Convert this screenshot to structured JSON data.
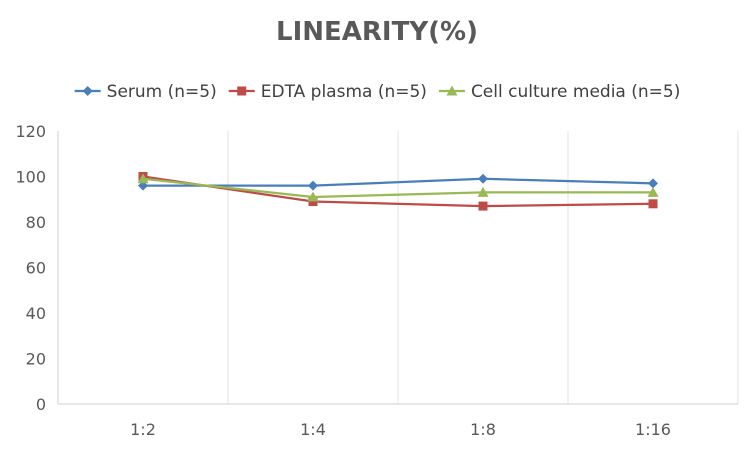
{
  "chart_data": {
    "type": "line",
    "title": "LINEARITY(%)",
    "xlabel": "",
    "ylabel": "",
    "categories": [
      "1:2",
      "1:4",
      "1:8",
      "1:16"
    ],
    "ylim": [
      0,
      120
    ],
    "yticks": [
      0,
      20,
      40,
      60,
      80,
      100,
      120
    ],
    "grid": "vertical",
    "legend_position": "top",
    "series": [
      {
        "name": "Serum (n=5)",
        "values": [
          96,
          96,
          99,
          97
        ],
        "color": "#4a7ebb",
        "marker": "diamond"
      },
      {
        "name": "EDTA plasma (n=5)",
        "values": [
          100,
          89,
          87,
          88
        ],
        "color": "#be4b48",
        "marker": "square"
      },
      {
        "name": "Cell culture media (n=5)",
        "values": [
          99,
          91,
          93,
          93
        ],
        "color": "#98b954",
        "marker": "triangle"
      }
    ]
  }
}
